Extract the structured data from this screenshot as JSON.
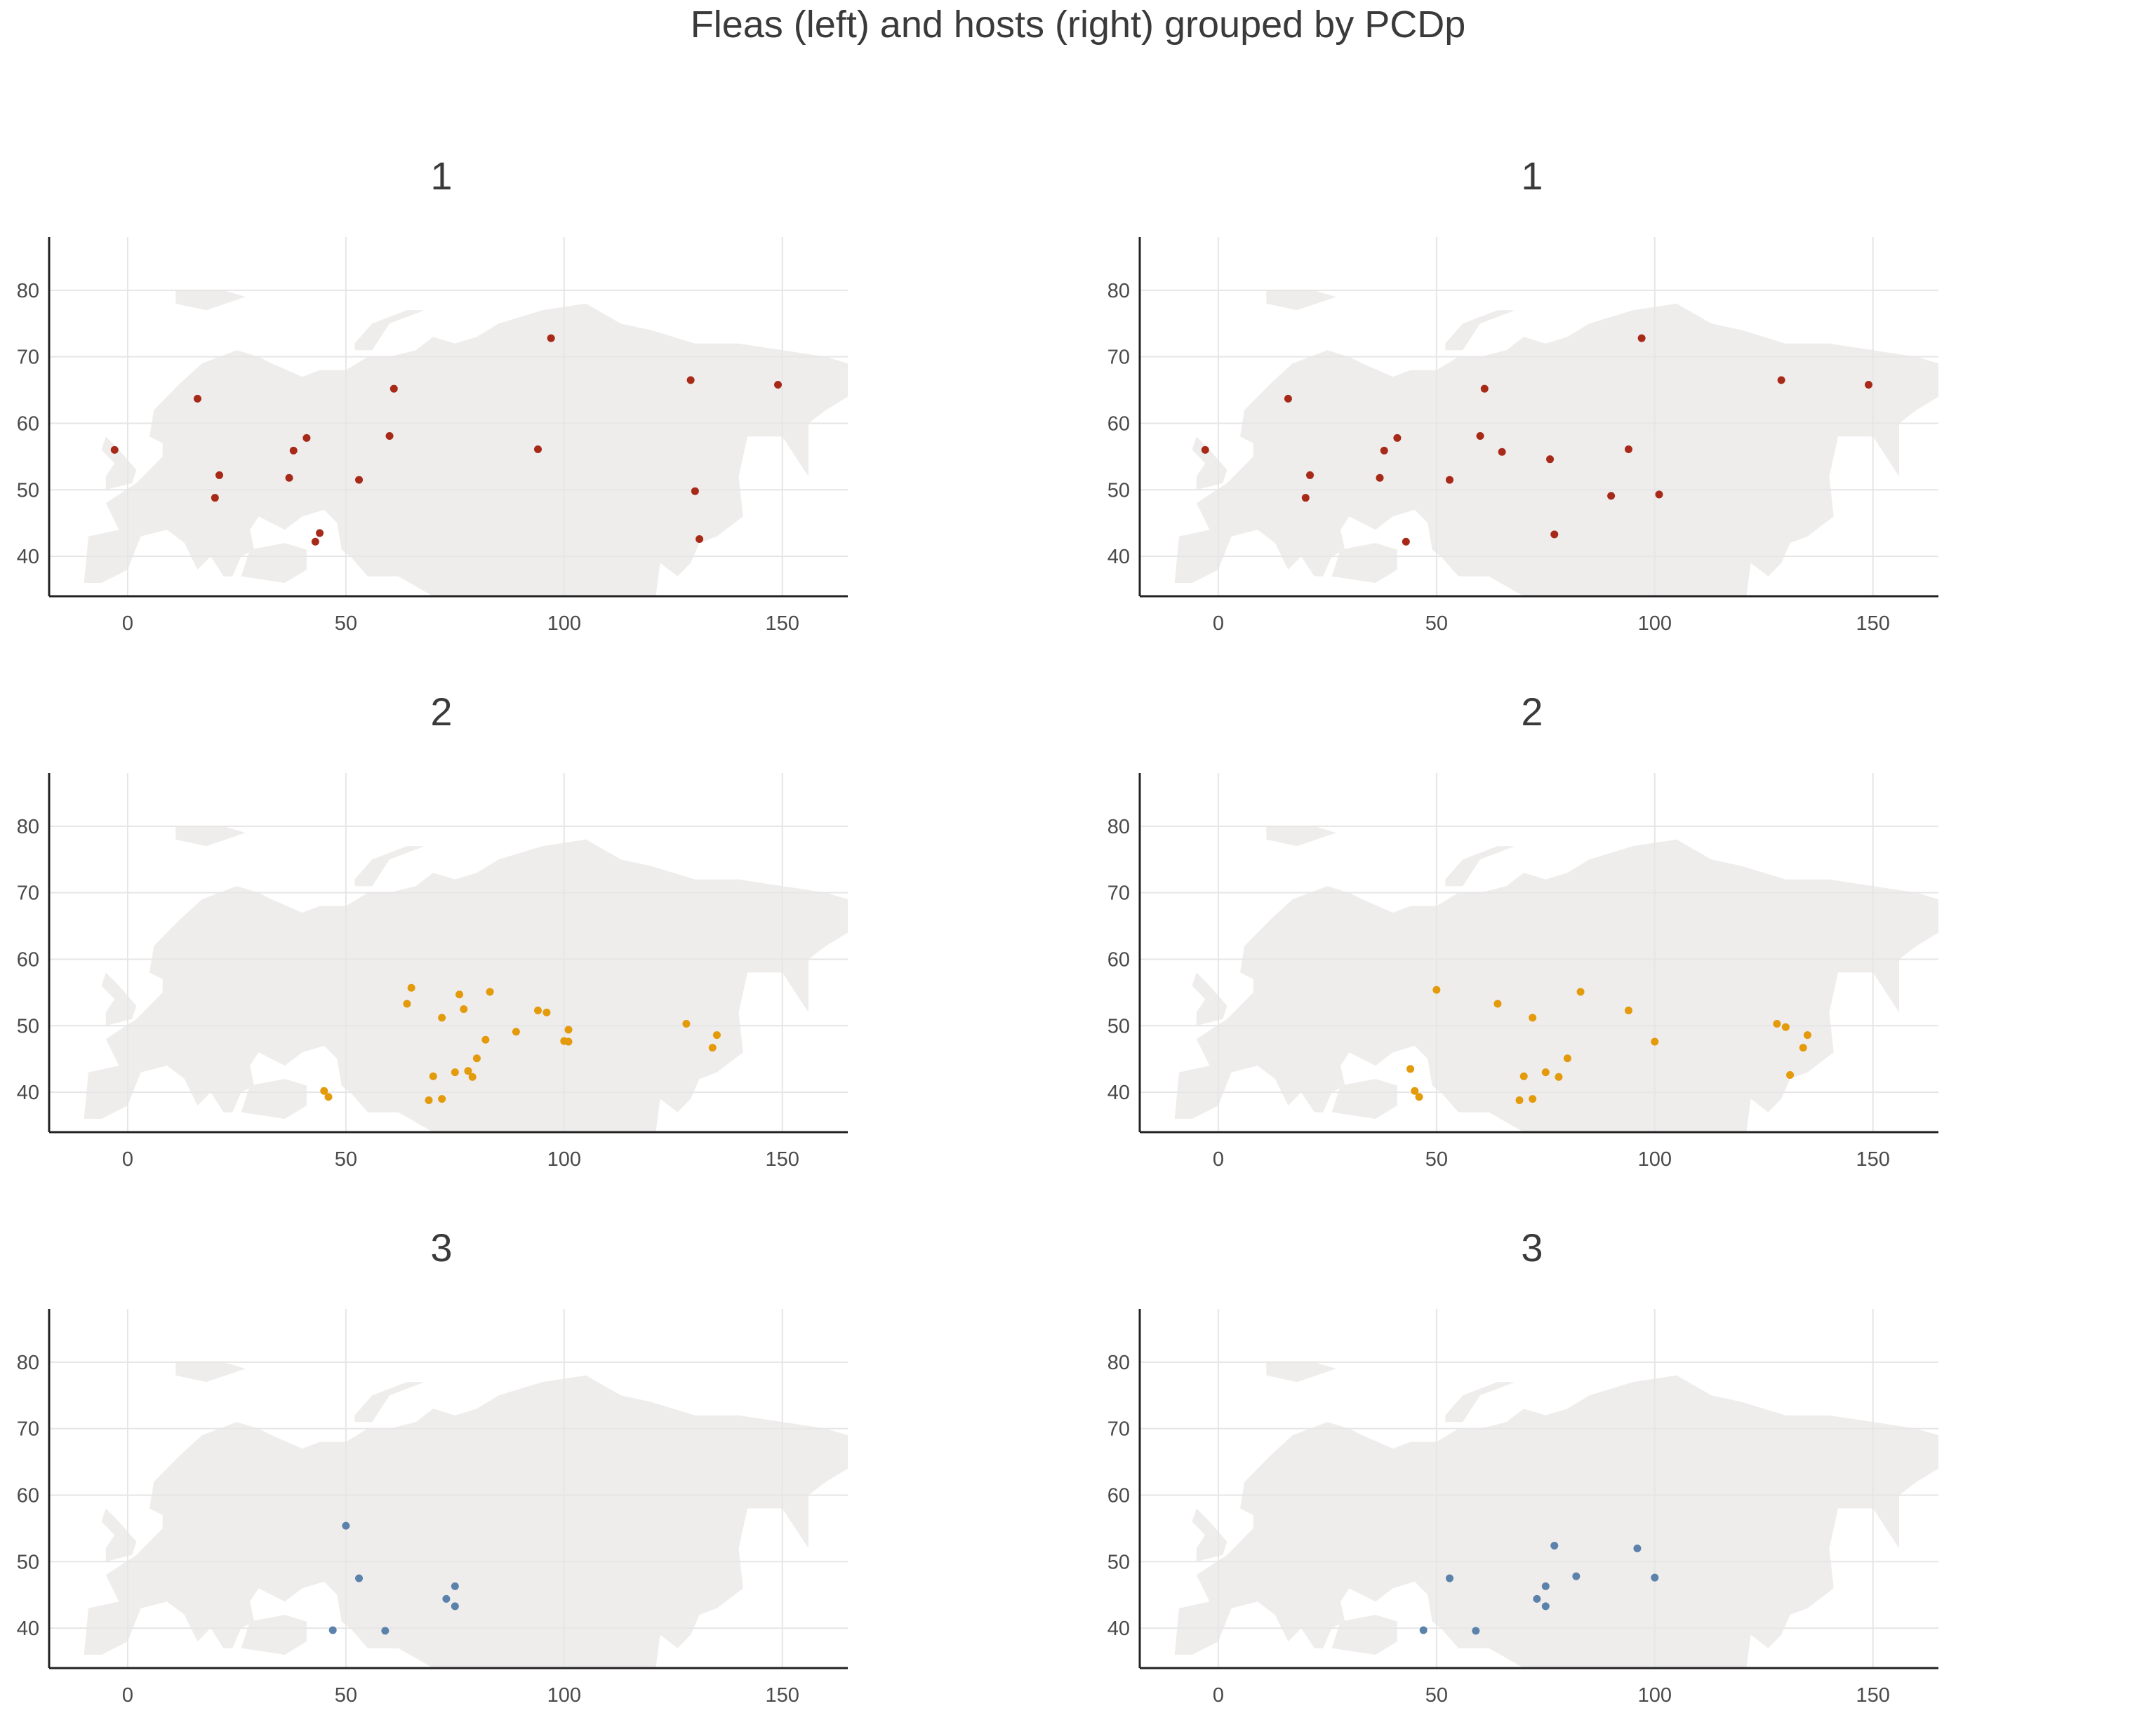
{
  "title": "Fleas (left) and hosts (right) grouped by PCDp",
  "colors": {
    "group_1": "#a72a18",
    "group_2": "#e39a0b",
    "group_3": "#5b82ab",
    "land": "#efecec",
    "grid": "#e6e6e6",
    "axis": "#222222"
  },
  "chart_data": [
    {
      "type": "scatter",
      "panel": "fleas",
      "title": "1",
      "xlim": [
        -18,
        165
      ],
      "ylim": [
        34,
        88
      ],
      "xticks": [
        0,
        50,
        100,
        150
      ],
      "yticks": [
        40,
        50,
        60,
        70,
        80
      ],
      "grid": true,
      "color_key": "group_1",
      "x": [
        -3,
        16,
        20,
        21,
        37,
        38,
        41,
        43,
        44,
        53,
        60,
        61,
        94,
        97,
        129,
        130,
        131,
        149
      ],
      "y": [
        56,
        63.7,
        48.8,
        52.2,
        51.8,
        55.9,
        57.8,
        42.2,
        43.5,
        51.5,
        58.1,
        65.2,
        56.1,
        72.8,
        66.5,
        49.8,
        42.6,
        65.8
      ]
    },
    {
      "type": "scatter",
      "panel": "hosts",
      "title": "1",
      "xlim": [
        -18,
        165
      ],
      "ylim": [
        34,
        88
      ],
      "xticks": [
        0,
        50,
        100,
        150
      ],
      "yticks": [
        40,
        50,
        60,
        70,
        80
      ],
      "grid": true,
      "color_key": "group_1",
      "x": [
        -3,
        16,
        20,
        21,
        37,
        38,
        41,
        43,
        53,
        60,
        61,
        65,
        76,
        77,
        90,
        94,
        97,
        101,
        129,
        149
      ],
      "y": [
        56,
        63.7,
        48.8,
        52.2,
        51.8,
        55.9,
        57.8,
        42.2,
        51.5,
        58.1,
        65.2,
        55.7,
        54.6,
        43.3,
        49.1,
        56.1,
        72.8,
        49.3,
        66.5,
        65.8
      ]
    },
    {
      "type": "scatter",
      "panel": "fleas",
      "title": "2",
      "xlim": [
        -18,
        165
      ],
      "ylim": [
        34,
        88
      ],
      "xticks": [
        0,
        50,
        100,
        150
      ],
      "yticks": [
        40,
        50,
        60,
        70,
        80
      ],
      "grid": true,
      "color_key": "group_2",
      "x": [
        45,
        46,
        64,
        65,
        69,
        70,
        72,
        72,
        75,
        76,
        77,
        78,
        79,
        80,
        82,
        83,
        89,
        94,
        96,
        100,
        101,
        101,
        128,
        134,
        135
      ],
      "y": [
        40.2,
        39.3,
        53.3,
        55.7,
        38.8,
        42.4,
        51.2,
        39,
        43,
        54.7,
        52.5,
        43.2,
        42.3,
        45.1,
        47.9,
        55.1,
        49.1,
        52.3,
        52,
        47.7,
        47.6,
        49.4,
        50.3,
        46.7,
        48.6
      ]
    },
    {
      "type": "scatter",
      "panel": "hosts",
      "title": "2",
      "xlim": [
        -18,
        165
      ],
      "ylim": [
        34,
        88
      ],
      "xticks": [
        0,
        50,
        100,
        150
      ],
      "yticks": [
        40,
        50,
        60,
        70,
        80
      ],
      "grid": true,
      "color_key": "group_2",
      "x": [
        44,
        45,
        46,
        50,
        64,
        69,
        70,
        72,
        72,
        75,
        78,
        80,
        83,
        94,
        100,
        128,
        130,
        131,
        134,
        135
      ],
      "y": [
        43.5,
        40.2,
        39.3,
        55.4,
        53.3,
        38.8,
        42.4,
        51.2,
        39,
        43,
        42.3,
        45.1,
        55.1,
        52.3,
        47.6,
        50.3,
        49.8,
        42.6,
        46.7,
        48.6
      ]
    },
    {
      "type": "scatter",
      "panel": "fleas",
      "title": "3",
      "xlim": [
        -18,
        165
      ],
      "ylim": [
        34,
        88
      ],
      "xticks": [
        0,
        50,
        100,
        150
      ],
      "yticks": [
        40,
        50,
        60,
        70,
        80
      ],
      "grid": true,
      "color_key": "group_3",
      "x": [
        47,
        50,
        53,
        59,
        73,
        75,
        75
      ],
      "y": [
        39.7,
        55.4,
        47.5,
        39.6,
        44.4,
        46.3,
        43.3
      ]
    },
    {
      "type": "scatter",
      "panel": "hosts",
      "title": "3",
      "xlim": [
        -18,
        165
      ],
      "ylim": [
        34,
        88
      ],
      "xticks": [
        0,
        50,
        100,
        150
      ],
      "yticks": [
        40,
        50,
        60,
        70,
        80
      ],
      "grid": true,
      "color_key": "group_3",
      "x": [
        47,
        53,
        59,
        73,
        75,
        75,
        77,
        82,
        96,
        100
      ],
      "y": [
        39.7,
        47.5,
        39.6,
        44.4,
        46.3,
        43.3,
        52.4,
        47.8,
        52,
        47.6
      ]
    }
  ]
}
